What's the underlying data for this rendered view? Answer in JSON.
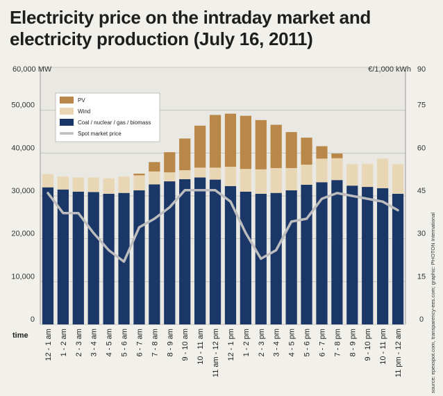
{
  "chart_data": {
    "type": "bar",
    "title": "Electricity price on the intraday market and electricity production (July 16, 2011)",
    "xlabel": "time",
    "ylabel_left": "60,000 MW",
    "ylabel_right": "€/1,000 kWh",
    "ylim": [
      0,
      60000
    ],
    "ylim_right": [
      0,
      90
    ],
    "yticks": [
      "0",
      "10,000",
      "20,000",
      "30,000",
      "40,000",
      "50,000"
    ],
    "yticks_right": [
      "0",
      "15",
      "30",
      "45",
      "60",
      "75",
      "90"
    ],
    "categories": [
      "12 - 1 am",
      "1 - 2 am",
      "2 - 3 am",
      "3 - 4 am",
      "4 - 5 am",
      "5 - 6 am",
      "6 - 7 am",
      "7 - 8 am",
      "8 - 9 am",
      "9 - 10 am",
      "10 - 11 am",
      "11 am - 12 pm",
      "12 - 1 pm",
      "1 - 2 pm",
      "2 - 3 pm",
      "3 - 4 pm",
      "4 - 5 pm",
      "5 - 6 pm",
      "6 - 7 pm",
      "7 - 8 pm",
      "8 - 9 pm",
      "9 - 10 pm",
      "10 - 11 pm",
      "11 pm - 12 am"
    ],
    "series": [
      {
        "name": "Coal / nuclear / gas / biomass",
        "kind": "bar",
        "color": "#1b3767",
        "values": [
          32000,
          31500,
          31000,
          30900,
          30500,
          30700,
          31300,
          32700,
          33400,
          33900,
          34300,
          33800,
          32300,
          31000,
          30500,
          30700,
          31300,
          32600,
          33200,
          33700,
          32400,
          32100,
          31800,
          30500
        ]
      },
      {
        "name": "Wind",
        "kind": "bar",
        "color": "#e8d6b4",
        "values": [
          3100,
          3000,
          3300,
          3400,
          3600,
          3800,
          3500,
          3000,
          2100,
          2100,
          2300,
          2800,
          4500,
          5300,
          5700,
          5800,
          5200,
          4700,
          5500,
          5100,
          5000,
          5400,
          6900,
          6900
        ]
      },
      {
        "name": "PV",
        "kind": "bar",
        "color": "#b98848",
        "values": [
          0,
          0,
          0,
          0,
          0,
          0,
          400,
          2200,
          4700,
          7400,
          9800,
          12300,
          12400,
          12400,
          11500,
          10100,
          8400,
          6300,
          2900,
          1100,
          0,
          0,
          0,
          0
        ]
      },
      {
        "name": "Spot market price",
        "kind": "line",
        "color": "#bdbdbd",
        "axis": "right",
        "values": [
          46,
          39,
          39,
          32,
          26,
          22,
          34,
          37,
          41,
          47,
          47,
          47,
          43,
          32,
          23,
          26,
          36,
          37,
          44,
          46,
          45,
          44,
          43,
          40
        ]
      }
    ]
  }
}
